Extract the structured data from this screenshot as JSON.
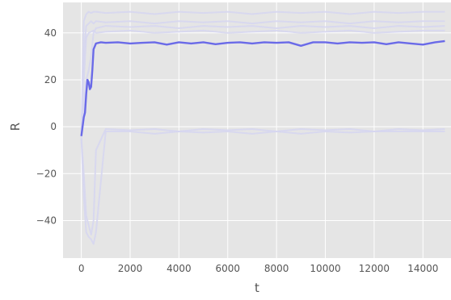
{
  "chart_data": {
    "type": "line",
    "title": "",
    "xlabel": "t",
    "ylabel": "R",
    "xlim": [
      -750,
      15150
    ],
    "ylim": [
      -56,
      53
    ],
    "xticks": [
      0,
      2000,
      4000,
      6000,
      8000,
      10000,
      12000,
      14000
    ],
    "yticks": [
      -40,
      -20,
      0,
      20,
      40
    ],
    "xtick_labels": [
      "0",
      "2000",
      "4000",
      "6000",
      "8000",
      "10000",
      "12000",
      "14000"
    ],
    "ytick_labels": [
      "−40",
      "−20",
      "0",
      "20",
      "40"
    ],
    "grid": true,
    "legend": "none",
    "colors": {
      "background": "#e5e5e5",
      "grid": "#ffffff",
      "mean_line": "#6a6ae8",
      "faint_line": "#d6d6f0"
    },
    "series": [
      {
        "role": "mean",
        "x": [
          0,
          100,
          150,
          200,
          250,
          300,
          350,
          400,
          450,
          500,
          600,
          800,
          1000,
          1500,
          2000,
          2500,
          3000,
          3500,
          4000,
          4500,
          5000,
          5500,
          6000,
          6500,
          7000,
          7500,
          8000,
          8500,
          9000,
          9500,
          10000,
          10500,
          11000,
          11500,
          12000,
          12500,
          13000,
          13500,
          14000,
          14500,
          14900
        ],
        "y": [
          -4,
          4,
          6,
          14,
          20,
          19,
          16,
          17,
          24,
          33,
          35.5,
          36,
          35.8,
          36,
          35.5,
          35.8,
          36,
          35,
          36,
          35.5,
          36,
          35.2,
          35.8,
          36,
          35.5,
          36,
          35.8,
          36,
          34.5,
          36,
          36,
          35.5,
          36,
          35.8,
          36,
          35.2,
          36,
          35.5,
          35,
          36,
          36.5
        ]
      },
      {
        "role": "run",
        "x": [
          0,
          100,
          200,
          300,
          400,
          500,
          600,
          1000,
          2000,
          3000,
          4000,
          5000,
          6000,
          7000,
          8000,
          9000,
          10000,
          11000,
          12000,
          13000,
          14000,
          14900
        ],
        "y": [
          -2,
          45,
          48,
          49,
          48.5,
          49,
          49,
          48.5,
          49,
          48,
          49,
          48.5,
          49,
          48,
          49,
          48.5,
          49,
          48,
          49,
          48.5,
          49,
          49
        ]
      },
      {
        "role": "run",
        "x": [
          0,
          100,
          200,
          300,
          400,
          500,
          600,
          1000,
          2000,
          3000,
          4000,
          5000,
          6000,
          7000,
          8000,
          9000,
          10000,
          11000,
          12000,
          13000,
          14000,
          14900
        ],
        "y": [
          -3,
          30,
          43,
          44,
          45,
          44,
          45,
          44.5,
          45,
          44,
          45,
          44.5,
          45,
          44,
          45,
          44.5,
          45,
          44,
          45,
          44.5,
          45,
          45
        ]
      },
      {
        "role": "run",
        "x": [
          0,
          100,
          200,
          300,
          400,
          500,
          600,
          1000,
          2000,
          3000,
          4000,
          5000,
          6000,
          7000,
          8000,
          9000,
          10000,
          11000,
          12000,
          13000,
          14000,
          14900
        ],
        "y": [
          -5,
          20,
          38,
          40,
          40.5,
          41,
          40,
          40.5,
          41,
          40,
          40.5,
          41,
          40,
          40.5,
          41,
          40,
          40.5,
          41,
          40,
          40.5,
          41,
          41
        ]
      },
      {
        "role": "run",
        "x": [
          0,
          100,
          200,
          300,
          400,
          500,
          600,
          1000,
          2000,
          3000,
          4000,
          5000,
          6000,
          7000,
          8000,
          9000,
          10000,
          11000,
          12000,
          13000,
          14000,
          14900
        ],
        "y": [
          -4,
          8,
          20,
          24,
          30,
          40,
          42,
          43,
          42.5,
          43,
          42,
          43,
          42.5,
          43,
          42,
          43,
          42.5,
          43,
          42,
          43,
          42.5,
          43
        ]
      },
      {
        "role": "run",
        "x": [
          0,
          100,
          200,
          300,
          400,
          500,
          600,
          1000,
          2000,
          3000,
          4000,
          5000,
          6000,
          7000,
          8000,
          9000,
          10000,
          11000,
          12000,
          13000,
          14000,
          14900
        ],
        "y": [
          -5,
          -30,
          -45,
          -47,
          -48,
          -50,
          -45,
          -2,
          -2,
          -3,
          -2,
          -2.5,
          -2,
          -3,
          -2,
          -3,
          -2,
          -2.5,
          -2,
          -2,
          -2,
          -2
        ]
      },
      {
        "role": "run",
        "x": [
          0,
          100,
          200,
          300,
          400,
          500,
          600,
          1000,
          2000,
          3000,
          4000,
          5000,
          6000,
          7000,
          8000,
          9000,
          10000,
          11000,
          12000,
          13000,
          14000,
          14900
        ],
        "y": [
          -5,
          -20,
          -38,
          -42,
          -46,
          -40,
          -10,
          -1,
          -1.5,
          -1,
          -2,
          -1,
          -1.5,
          -1,
          -2,
          -1,
          -1.5,
          -1,
          -2,
          -1,
          -1.5,
          -1
        ]
      }
    ]
  }
}
